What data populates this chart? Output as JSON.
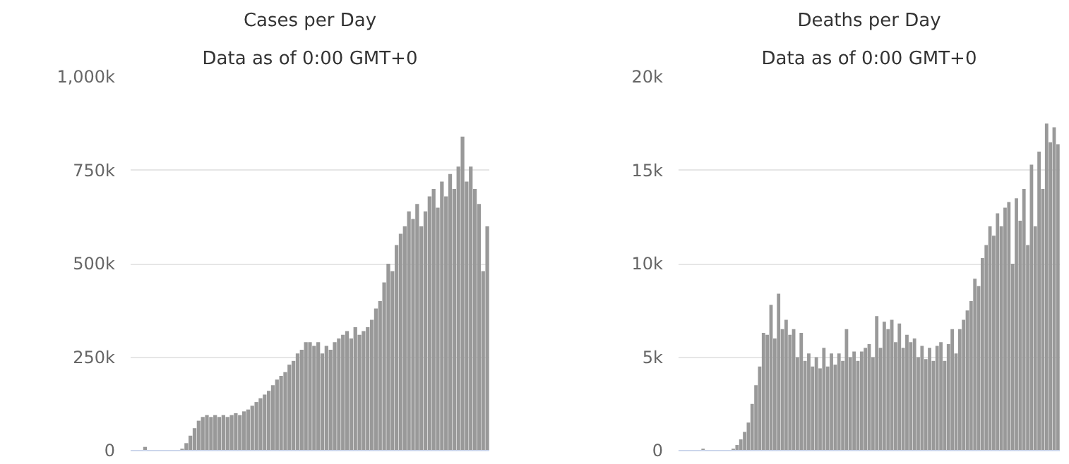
{
  "chart_data": [
    {
      "type": "bar",
      "title": "Cases per Day",
      "subtitle": "Data as of 0:00 GMT+0",
      "color": "#999999",
      "categories": [
        null,
        null,
        null,
        null,
        null,
        null,
        null,
        null,
        null,
        null,
        null,
        null,
        null,
        null,
        null,
        null,
        null,
        null,
        null,
        null,
        null,
        null,
        null,
        null,
        null,
        null,
        null,
        null,
        null,
        null,
        null,
        null,
        null,
        null,
        null,
        null,
        null,
        null,
        null,
        null,
        null,
        null,
        null,
        null,
        null,
        null,
        null,
        null,
        null,
        null,
        null,
        null,
        null,
        null,
        null,
        null,
        null,
        null,
        null,
        null,
        null,
        null,
        null,
        null,
        null,
        null,
        null,
        null,
        null,
        null,
        null,
        null,
        null,
        null,
        null,
        null,
        null,
        null,
        null,
        null,
        null,
        null,
        null,
        null,
        null,
        null,
        null
      ],
      "values": [
        0,
        0,
        0,
        10000,
        0,
        0,
        0,
        0,
        0,
        0,
        0,
        0,
        5000,
        20000,
        40000,
        60000,
        80000,
        90000,
        95000,
        90000,
        95000,
        90000,
        95000,
        90000,
        95000,
        100000,
        95000,
        105000,
        110000,
        120000,
        130000,
        140000,
        150000,
        160000,
        175000,
        190000,
        200000,
        210000,
        230000,
        240000,
        260000,
        270000,
        290000,
        290000,
        280000,
        290000,
        260000,
        280000,
        270000,
        290000,
        300000,
        310000,
        320000,
        300000,
        330000,
        310000,
        320000,
        330000,
        350000,
        380000,
        400000,
        450000,
        500000,
        480000,
        550000,
        580000,
        600000,
        640000,
        620000,
        660000,
        600000,
        640000,
        680000,
        700000,
        650000,
        720000,
        680000,
        740000,
        700000,
        760000,
        840000,
        720000,
        760000,
        700000,
        660000,
        480000,
        600000
      ],
      "ylim": [
        0,
        1000000
      ],
      "yticks": [
        0,
        {
          "value": 250000,
          "label": "250k"
        },
        {
          "value": 500000,
          "label": "500k"
        },
        {
          "value": 750000,
          "label": "750k"
        },
        {
          "value": 1000000,
          "label": "1,000k"
        }
      ],
      "grid": "y",
      "tick_labels": "y"
    },
    {
      "type": "bar",
      "title": "Deaths per Day",
      "subtitle": "Data as of 0:00 GMT+0",
      "color": "#999999",
      "categories": [
        null,
        null,
        null,
        null,
        null,
        null,
        null,
        null,
        null,
        null,
        null,
        null,
        null,
        null,
        null,
        null,
        null,
        null,
        null,
        null,
        null,
        null,
        null,
        null,
        null,
        null,
        null,
        null,
        null,
        null,
        null,
        null,
        null,
        null,
        null,
        null,
        null,
        null,
        null,
        null,
        null,
        null,
        null,
        null,
        null,
        null,
        null,
        null,
        null,
        null,
        null,
        null,
        null,
        null,
        null,
        null,
        null,
        null,
        null,
        null,
        null,
        null,
        null,
        null,
        null,
        null,
        null,
        null,
        null,
        null,
        null,
        null,
        null,
        null,
        null,
        null,
        null,
        null,
        null,
        null,
        null,
        null,
        null,
        null,
        null,
        null,
        null,
        null,
        null,
        null,
        null,
        null,
        null,
        null,
        null,
        null,
        null,
        null,
        null,
        null,
        null
      ],
      "values": [
        0,
        0,
        0,
        0,
        0,
        0,
        100,
        0,
        0,
        0,
        0,
        0,
        0,
        0,
        100,
        300,
        600,
        1000,
        1500,
        2500,
        3500,
        4500,
        6300,
        6200,
        7800,
        6000,
        8400,
        6500,
        7000,
        6200,
        6500,
        5000,
        6300,
        4800,
        5200,
        4500,
        5000,
        4400,
        5500,
        4500,
        5200,
        4600,
        5200,
        4800,
        6500,
        5000,
        5300,
        4800,
        5300,
        5500,
        5700,
        5000,
        7200,
        5500,
        6900,
        6500,
        7000,
        5800,
        6800,
        5500,
        6200,
        5800,
        6000,
        5000,
        5600,
        4900,
        5500,
        4800,
        5600,
        5800,
        4800,
        5700,
        6500,
        5200,
        6500,
        7000,
        7500,
        8000,
        9200,
        8800,
        10300,
        11000,
        12000,
        11500,
        12700,
        12000,
        13000,
        13300,
        10000,
        13500,
        12300,
        14000,
        11000,
        15300,
        12000,
        16000,
        14000,
        17500,
        16500,
        17300,
        16400
      ],
      "ylim": [
        0,
        20000
      ],
      "yticks": [
        0,
        {
          "value": 5000,
          "label": "5k"
        },
        {
          "value": 10000,
          "label": "10k"
        },
        {
          "value": 15000,
          "label": "15k"
        },
        {
          "value": 20000,
          "label": "20k"
        }
      ],
      "grid": "y",
      "tick_labels": "y"
    }
  ]
}
